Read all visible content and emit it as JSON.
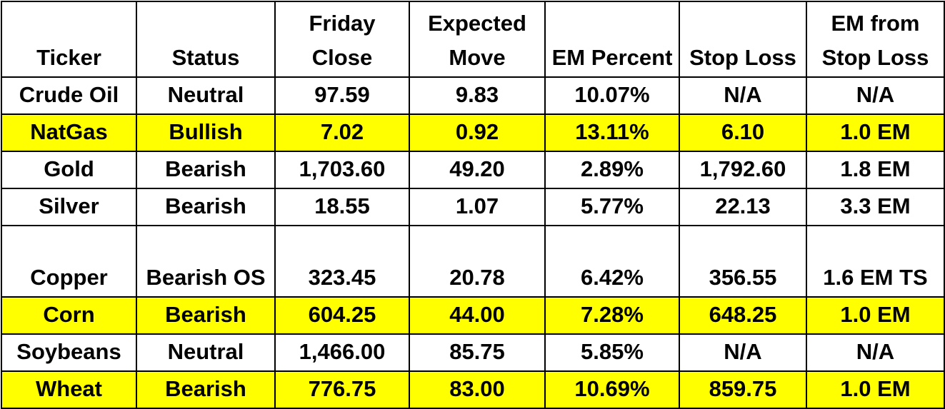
{
  "table": {
    "headers": [
      "Ticker",
      "Status",
      "Friday Close",
      "Expected Move",
      "EM Percent",
      "Stop Loss",
      "EM from Stop Loss"
    ],
    "highlight_color": "#ffff00",
    "rows": [
      {
        "highlight": false,
        "cells": [
          "Crude Oil",
          "Neutral",
          "97.59",
          "9.83",
          "10.07%",
          "N/A",
          "N/A"
        ]
      },
      {
        "highlight": true,
        "cells": [
          "NatGas",
          "Bullish",
          "7.02",
          "0.92",
          "13.11%",
          "6.10",
          "1.0 EM"
        ]
      },
      {
        "highlight": false,
        "cells": [
          "Gold",
          "Bearish",
          "1,703.60",
          "49.20",
          "2.89%",
          "1,792.60",
          "1.8 EM"
        ]
      },
      {
        "highlight": false,
        "cells": [
          "Silver",
          "Bearish",
          "18.55",
          "1.07",
          "5.77%",
          "22.13",
          "3.3 EM"
        ]
      },
      {
        "highlight": false,
        "cells": [
          "Copper",
          "Bearish OS",
          "323.45",
          "20.78",
          "6.42%",
          "356.55",
          "1.6 EM TS"
        ]
      },
      {
        "highlight": true,
        "cells": [
          "Corn",
          "Bearish",
          "604.25",
          "44.00",
          "7.28%",
          "648.25",
          "1.0 EM"
        ]
      },
      {
        "highlight": false,
        "cells": [
          "Soybeans",
          "Neutral",
          "1,466.00",
          "85.75",
          "5.85%",
          "N/A",
          "N/A"
        ]
      },
      {
        "highlight": true,
        "cells": [
          "Wheat",
          "Bearish",
          "776.75",
          "83.00",
          "10.69%",
          "859.75",
          "1.0 EM"
        ]
      }
    ]
  }
}
